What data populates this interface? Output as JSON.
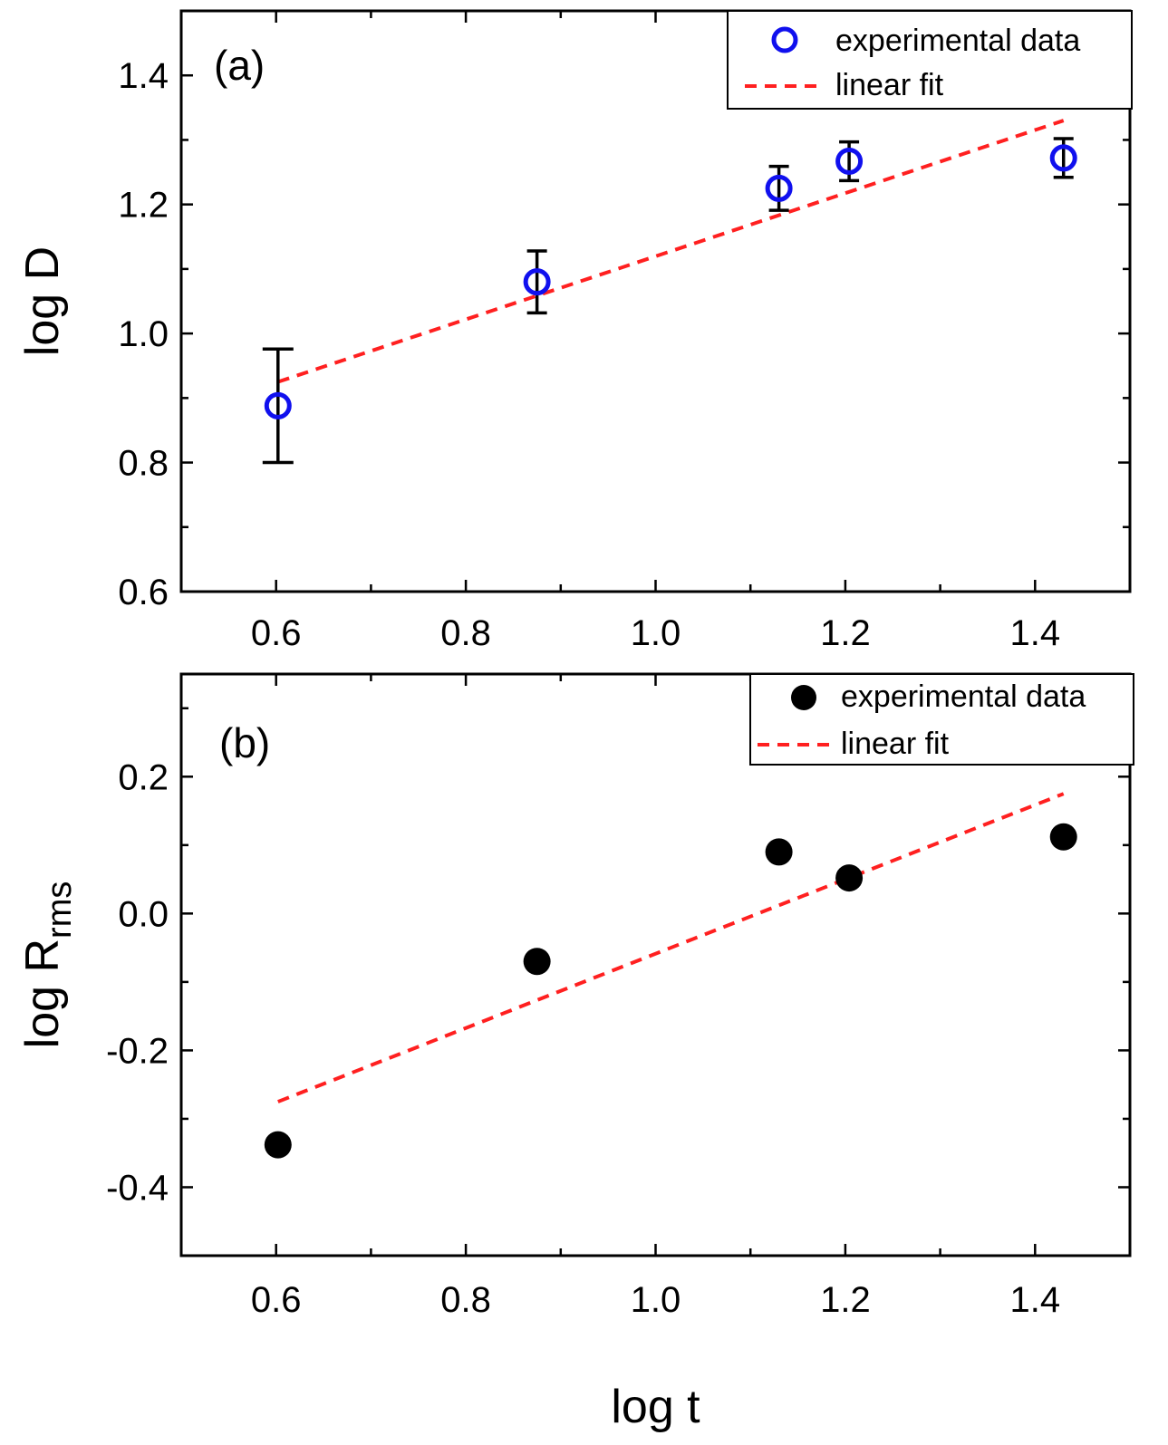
{
  "chart_data": [
    {
      "type": "scatter",
      "panel_label": "(a)",
      "xlabel": "",
      "ylabel": "log D",
      "xlim": [
        0.5,
        1.5
      ],
      "ylim": [
        0.6,
        1.5
      ],
      "x_ticks": [
        0.6,
        0.8,
        1.0,
        1.2,
        1.4
      ],
      "x_tick_labels": [
        "0.6",
        "0.8",
        "1.0",
        "1.2",
        "1.4"
      ],
      "y_ticks": [
        0.6,
        0.8,
        1.0,
        1.2,
        1.4
      ],
      "y_tick_labels": [
        "0.6",
        "0.8",
        "1.0",
        "1.2",
        "1.4"
      ],
      "legend_position": "top-right",
      "series": [
        {
          "name": "experimental data",
          "marker": "open-circle",
          "color": "#1010ee",
          "x": [
            0.602,
            0.875,
            1.13,
            1.204,
            1.43
          ],
          "y": [
            0.888,
            1.08,
            1.225,
            1.267,
            1.272
          ],
          "yerr": [
            0.088,
            0.048,
            0.034,
            0.03,
            0.03
          ]
        },
        {
          "name": "linear fit",
          "style": "dashed",
          "color": "#ff2020",
          "x": [
            0.602,
            1.43
          ],
          "y": [
            0.925,
            1.33
          ]
        }
      ]
    },
    {
      "type": "scatter",
      "panel_label": "(b)",
      "xlabel": "log t",
      "ylabel": "log R",
      "ylabel_subscript": "rms",
      "xlim": [
        0.5,
        1.5
      ],
      "ylim": [
        -0.5,
        0.35
      ],
      "x_ticks": [
        0.6,
        0.8,
        1.0,
        1.2,
        1.4
      ],
      "x_tick_labels": [
        "0.6",
        "0.8",
        "1.0",
        "1.2",
        "1.4"
      ],
      "y_ticks": [
        -0.4,
        -0.2,
        0.0,
        0.2
      ],
      "y_tick_labels": [
        "-0.4",
        "-0.2",
        "0.0",
        "0.2"
      ],
      "legend_position": "top-right",
      "series": [
        {
          "name": "experimental data",
          "marker": "filled-circle",
          "color": "#000000",
          "x": [
            0.602,
            0.875,
            1.13,
            1.204,
            1.43
          ],
          "y": [
            -0.338,
            -0.07,
            0.09,
            0.052,
            0.112
          ]
        },
        {
          "name": "linear fit",
          "style": "dashed",
          "color": "#ff2020",
          "x": [
            0.602,
            1.43
          ],
          "y": [
            -0.275,
            0.175
          ]
        }
      ]
    }
  ]
}
